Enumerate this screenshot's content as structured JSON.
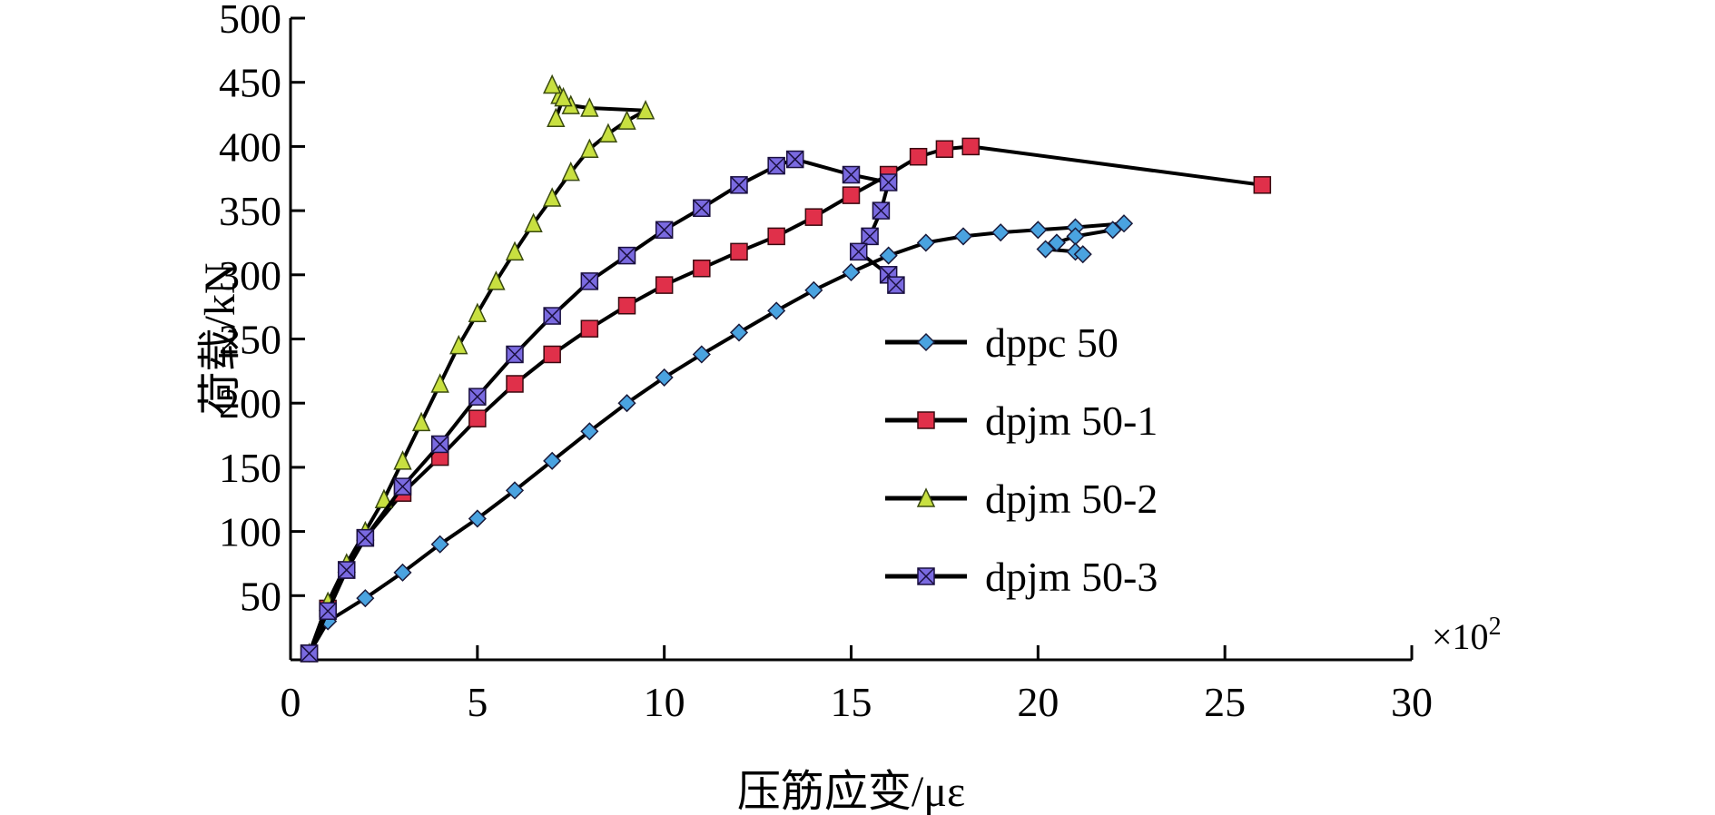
{
  "chart_data": {
    "type": "line",
    "title": "",
    "xlabel": "压筋应变/με",
    "ylabel": "荷载/kN",
    "x_multiplier_label": "×10",
    "x_multiplier_exp": "2",
    "xlim": [
      0,
      30
    ],
    "ylim": [
      0,
      500
    ],
    "x_ticks": [
      0,
      5,
      10,
      15,
      20,
      25,
      30
    ],
    "x_tick_labels": [
      "0",
      "5",
      "10",
      "15",
      "20",
      "25",
      "30"
    ],
    "y_ticks": [
      50,
      100,
      150,
      200,
      250,
      300,
      350,
      400,
      450,
      500
    ],
    "y_tick_labels": [
      "50",
      "100",
      "150",
      "200",
      "250",
      "300",
      "350",
      "400",
      "450",
      "500"
    ],
    "grid": false,
    "legend_position": "center-right",
    "series": [
      {
        "name": "dppc 50",
        "marker": "diamond",
        "color": "#4aa3e0",
        "x": [
          0.5,
          1,
          2,
          3,
          4,
          5,
          6,
          7,
          8,
          9,
          10,
          11,
          12,
          13,
          14,
          15,
          16,
          17,
          18,
          19,
          20,
          21,
          22.3,
          22.0,
          21.0,
          20.5,
          20.2,
          21.0,
          21.2
        ],
        "y": [
          5,
          30,
          48,
          68,
          90,
          110,
          132,
          155,
          178,
          200,
          220,
          238,
          255,
          272,
          288,
          302,
          315,
          325,
          330,
          333,
          335,
          337,
          340,
          335,
          330,
          325,
          320,
          318,
          316
        ]
      },
      {
        "name": "dpjm 50-1",
        "marker": "square",
        "color": "#e0304a",
        "x": [
          0.5,
          1,
          1.5,
          2,
          3,
          4,
          5,
          6,
          7,
          8,
          9,
          10,
          11,
          12,
          13,
          14,
          15,
          16,
          16.8,
          17.5,
          18.2,
          26
        ],
        "y": [
          5,
          40,
          70,
          95,
          130,
          158,
          188,
          215,
          238,
          258,
          276,
          292,
          305,
          318,
          330,
          345,
          362,
          378,
          392,
          398,
          400,
          370
        ]
      },
      {
        "name": "dpjm 50-2",
        "marker": "triangle",
        "color": "#c8e040",
        "x": [
          0.5,
          1,
          1.5,
          2,
          2.5,
          3,
          3.5,
          4,
          4.5,
          5,
          5.5,
          6,
          6.5,
          7,
          7.5,
          8,
          8.5,
          9,
          9.5,
          8.0,
          7.5,
          7.2,
          7.0,
          7.3,
          7.1
        ],
        "y": [
          5,
          45,
          75,
          100,
          125,
          155,
          185,
          215,
          245,
          270,
          295,
          318,
          340,
          360,
          380,
          398,
          410,
          420,
          428,
          430,
          432,
          440,
          448,
          438,
          422
        ]
      },
      {
        "name": "dpjm 50-3",
        "marker": "x-square",
        "color": "#7a6ae0",
        "x": [
          0.5,
          1,
          1.5,
          2,
          3,
          4,
          5,
          6,
          7,
          8,
          9,
          10,
          11,
          12,
          13,
          13.5,
          15,
          16,
          15.8,
          15.5,
          15.2,
          16.0,
          16.2
        ],
        "y": [
          5,
          38,
          70,
          95,
          135,
          168,
          205,
          238,
          268,
          295,
          315,
          335,
          352,
          370,
          385,
          390,
          378,
          372,
          350,
          330,
          318,
          300,
          292
        ]
      }
    ]
  }
}
